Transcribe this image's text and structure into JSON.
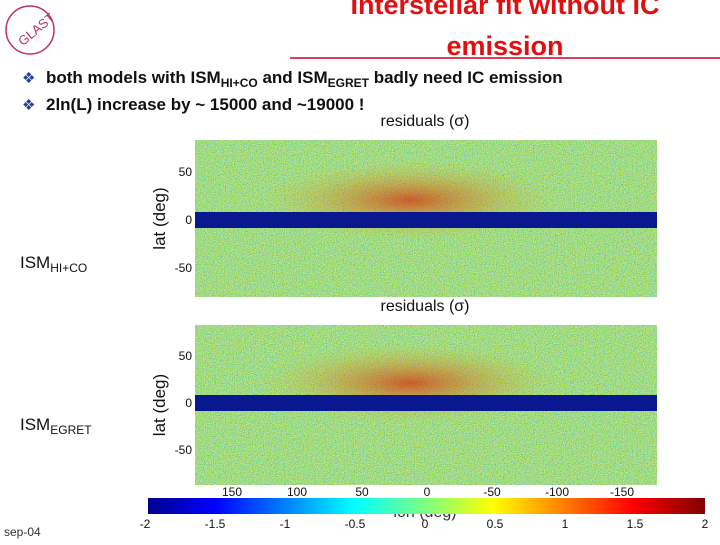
{
  "logo": "GLAST",
  "header": {
    "title_line1": "Interstellar fit without IC",
    "title_line2": "emission"
  },
  "bullets": [
    {
      "parts": [
        "both models with ISM",
        "HI+CO",
        " and ISM",
        "EGRET",
        " badly need IC emission"
      ]
    },
    {
      "parts": [
        "2ln(L) increase by ~ 15000 and ~19000 !"
      ]
    }
  ],
  "maps": [
    {
      "title": "residuals (σ)",
      "axis_label": "lat (deg)",
      "yticks": [
        50,
        0,
        -50
      ],
      "label": "ISM",
      "label_sub": "HI+CO"
    },
    {
      "title": "residuals (σ)",
      "axis_label": "lat (deg)",
      "yticks": [
        50,
        0,
        -50
      ],
      "label": "ISM",
      "label_sub": "EGRET"
    }
  ],
  "lon_axis": {
    "label": "lon (deg)",
    "ticks": [
      150,
      100,
      50,
      0,
      -50,
      -100,
      -150
    ]
  },
  "colorbar": {
    "ticks": [
      -2,
      -1.5,
      -1,
      -0.5,
      0,
      0.5,
      1,
      1.5,
      2
    ]
  },
  "footer": {
    "date": "sep-04"
  }
}
